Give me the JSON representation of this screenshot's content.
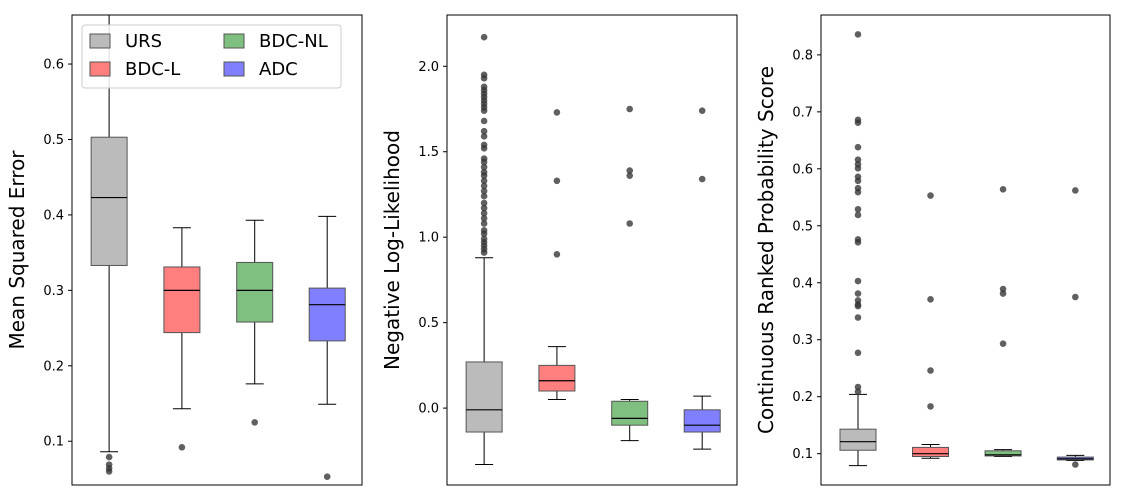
{
  "chart_data": [
    {
      "type": "box",
      "ylabel": "Mean Squared Error",
      "ylim": [
        0.042,
        0.665
      ],
      "yticks": [
        0.1,
        0.2,
        0.3,
        0.4,
        0.5,
        0.6
      ],
      "ytick_labels": [
        "0.1",
        "0.2",
        "0.3",
        "0.4",
        "0.5",
        "0.6"
      ],
      "legend": {
        "placement": "top-left",
        "entries": [
          {
            "name": "URS",
            "color": "#bbbbbb"
          },
          {
            "name": "BDC-L",
            "color": "#ff7f7f"
          },
          {
            "name": "BDC-NL",
            "color": "#7fbf7f"
          },
          {
            "name": "ADC",
            "color": "#7f7fff"
          }
        ]
      },
      "boxes": [
        {
          "name": "URS",
          "color": "#bbbbbb",
          "whislo": 0.086,
          "q1": 0.333,
          "median": 0.423,
          "q3": 0.503,
          "whishi": 0.665,
          "fliers": [
            0.079,
            0.069,
            0.064,
            0.06
          ]
        },
        {
          "name": "BDC-L",
          "color": "#ff7f7f",
          "whislo": 0.143,
          "q1": 0.244,
          "median": 0.3,
          "q3": 0.331,
          "whishi": 0.383,
          "fliers": [
            0.092
          ]
        },
        {
          "name": "BDC-NL",
          "color": "#7fbf7f",
          "whislo": 0.176,
          "q1": 0.258,
          "median": 0.3,
          "q3": 0.337,
          "whishi": 0.393,
          "fliers": [
            0.125
          ]
        },
        {
          "name": "ADC",
          "color": "#7f7fff",
          "whislo": 0.149,
          "q1": 0.233,
          "median": 0.281,
          "q3": 0.303,
          "whishi": 0.398,
          "fliers": [
            0.053
          ]
        }
      ]
    },
    {
      "type": "box",
      "ylabel": "Negative Log-Likelihood",
      "ylim": [
        -0.45,
        2.3
      ],
      "yticks": [
        0.0,
        0.5,
        1.0,
        1.5,
        2.0
      ],
      "ytick_labels": [
        "0.0",
        "0.5",
        "1.0",
        "1.5",
        "2.0"
      ],
      "boxes": [
        {
          "name": "URS",
          "color": "#bbbbbb",
          "whislo": -0.33,
          "q1": -0.14,
          "median": -0.01,
          "q3": 0.27,
          "whishi": 0.88,
          "fliers": [
            2.17,
            1.95,
            1.93,
            1.88,
            1.86,
            1.84,
            1.82,
            1.8,
            1.78,
            1.76,
            1.74,
            1.68,
            1.62,
            1.59,
            1.54,
            1.52,
            1.46,
            1.44,
            1.41,
            1.38,
            1.36,
            1.33,
            1.3,
            1.27,
            1.24,
            1.2,
            1.17,
            1.14,
            1.11,
            1.08,
            1.04,
            1.02,
            0.99,
            0.97,
            0.95,
            0.93,
            0.91
          ]
        },
        {
          "name": "BDC-L",
          "color": "#ff7f7f",
          "whislo": 0.05,
          "q1": 0.1,
          "median": 0.16,
          "q3": 0.25,
          "whishi": 0.36,
          "fliers": [
            1.73,
            1.33,
            0.9
          ]
        },
        {
          "name": "BDC-NL",
          "color": "#7fbf7f",
          "whislo": -0.19,
          "q1": -0.1,
          "median": -0.06,
          "q3": 0.04,
          "whishi": 0.05,
          "fliers": [
            1.75,
            1.39,
            1.36,
            1.08
          ]
        },
        {
          "name": "ADC",
          "color": "#7f7fff",
          "whislo": -0.24,
          "q1": -0.14,
          "median": -0.1,
          "q3": -0.01,
          "whishi": 0.07,
          "fliers": [
            1.74,
            1.34
          ]
        }
      ]
    },
    {
      "type": "box",
      "ylabel": "Continuous Ranked Probability Score",
      "ylim": [
        0.045,
        0.87
      ],
      "yticks": [
        0.1,
        0.2,
        0.3,
        0.4,
        0.5,
        0.6,
        0.7,
        0.8
      ],
      "ytick_labels": [
        "0.1",
        "0.2",
        "0.3",
        "0.4",
        "0.5",
        "0.6",
        "0.7",
        "0.8"
      ],
      "boxes": [
        {
          "name": "URS",
          "color": "#bbbbbb",
          "whislo": 0.079,
          "q1": 0.106,
          "median": 0.121,
          "q3": 0.143,
          "whishi": 0.204,
          "fliers": [
            0.836,
            0.686,
            0.681,
            0.638,
            0.616,
            0.608,
            0.601,
            0.586,
            0.579,
            0.566,
            0.559,
            0.529,
            0.519,
            0.476,
            0.471,
            0.403,
            0.381,
            0.369,
            0.362,
            0.359,
            0.339,
            0.277,
            0.217,
            0.209
          ]
        },
        {
          "name": "BDC-L",
          "color": "#ff7f7f",
          "whislo": 0.092,
          "q1": 0.095,
          "median": 0.1,
          "q3": 0.111,
          "whishi": 0.116,
          "fliers": [
            0.553,
            0.371,
            0.246,
            0.183
          ]
        },
        {
          "name": "BDC-NL",
          "color": "#7fbf7f",
          "whislo": 0.095,
          "q1": 0.096,
          "median": 0.098,
          "q3": 0.105,
          "whishi": 0.107,
          "fliers": [
            0.564,
            0.389,
            0.381,
            0.293
          ]
        },
        {
          "name": "ADC",
          "color": "#7f7fff",
          "whislo": 0.088,
          "q1": 0.089,
          "median": 0.091,
          "q3": 0.094,
          "whishi": 0.097,
          "fliers": [
            0.562,
            0.375,
            0.081
          ]
        }
      ]
    }
  ]
}
